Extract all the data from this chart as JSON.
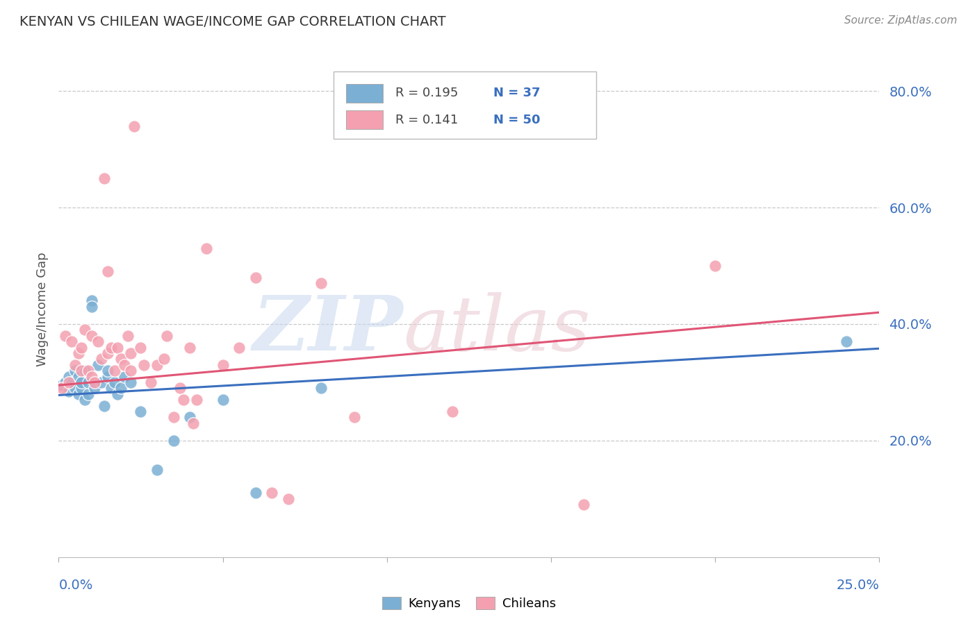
{
  "title": "KENYAN VS CHILEAN WAGE/INCOME GAP CORRELATION CHART",
  "source": "Source: ZipAtlas.com",
  "ylabel": "Wage/Income Gap",
  "xmin": 0.0,
  "xmax": 0.25,
  "ymin": 0.0,
  "ymax": 0.85,
  "yticks": [
    0.2,
    0.4,
    0.6,
    0.8
  ],
  "ytick_labels": [
    "20.0%",
    "40.0%",
    "60.0%",
    "80.0%"
  ],
  "kenyan_color": "#7bafd4",
  "chilean_color": "#f4a0b0",
  "kenyan_line_color": "#3a6fbf",
  "chilean_line_color": "#e05575",
  "legend_R_kenyan": "R = 0.195",
  "legend_N_kenyan": "N = 37",
  "legend_R_chilean": "R = 0.141",
  "legend_N_chilean": "N = 50",
  "kenyan_x": [
    0.001,
    0.002,
    0.003,
    0.003,
    0.004,
    0.005,
    0.005,
    0.006,
    0.006,
    0.007,
    0.007,
    0.008,
    0.008,
    0.009,
    0.009,
    0.01,
    0.01,
    0.011,
    0.012,
    0.013,
    0.014,
    0.015,
    0.015,
    0.016,
    0.017,
    0.018,
    0.019,
    0.02,
    0.022,
    0.025,
    0.03,
    0.035,
    0.04,
    0.05,
    0.06,
    0.08,
    0.24
  ],
  "kenyan_y": [
    0.295,
    0.3,
    0.285,
    0.31,
    0.3,
    0.29,
    0.32,
    0.28,
    0.31,
    0.29,
    0.3,
    0.27,
    0.32,
    0.3,
    0.28,
    0.44,
    0.43,
    0.29,
    0.33,
    0.3,
    0.26,
    0.31,
    0.32,
    0.29,
    0.3,
    0.28,
    0.29,
    0.31,
    0.3,
    0.25,
    0.15,
    0.2,
    0.24,
    0.27,
    0.11,
    0.29,
    0.37
  ],
  "chilean_x": [
    0.001,
    0.002,
    0.003,
    0.004,
    0.005,
    0.006,
    0.007,
    0.007,
    0.008,
    0.009,
    0.01,
    0.01,
    0.011,
    0.012,
    0.013,
    0.014,
    0.015,
    0.015,
    0.016,
    0.017,
    0.018,
    0.019,
    0.02,
    0.021,
    0.022,
    0.022,
    0.023,
    0.025,
    0.026,
    0.028,
    0.03,
    0.032,
    0.033,
    0.035,
    0.037,
    0.038,
    0.04,
    0.041,
    0.042,
    0.045,
    0.05,
    0.055,
    0.06,
    0.065,
    0.07,
    0.08,
    0.09,
    0.12,
    0.16,
    0.2
  ],
  "chilean_y": [
    0.29,
    0.38,
    0.3,
    0.37,
    0.33,
    0.35,
    0.32,
    0.36,
    0.39,
    0.32,
    0.31,
    0.38,
    0.3,
    0.37,
    0.34,
    0.65,
    0.35,
    0.49,
    0.36,
    0.32,
    0.36,
    0.34,
    0.33,
    0.38,
    0.32,
    0.35,
    0.74,
    0.36,
    0.33,
    0.3,
    0.33,
    0.34,
    0.38,
    0.24,
    0.29,
    0.27,
    0.36,
    0.23,
    0.27,
    0.53,
    0.33,
    0.36,
    0.48,
    0.11,
    0.1,
    0.47,
    0.24,
    0.25,
    0.09,
    0.5
  ],
  "kenyan_trend_x": [
    0.0,
    0.25
  ],
  "kenyan_trend_y": [
    0.278,
    0.358
  ],
  "chilean_trend_x": [
    0.0,
    0.25
  ],
  "chilean_trend_y": [
    0.295,
    0.42
  ]
}
